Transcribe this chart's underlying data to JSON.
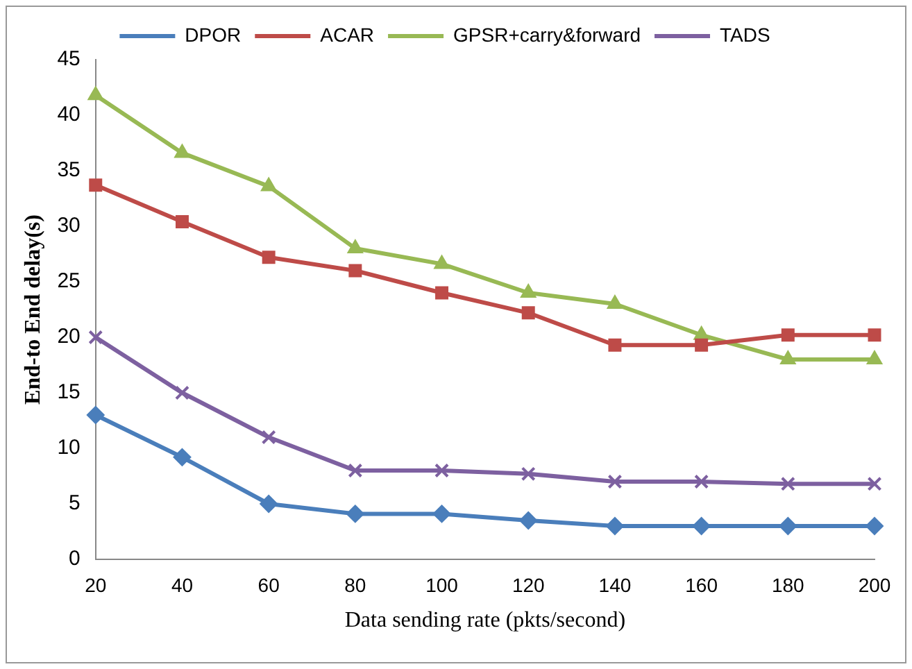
{
  "chart_data": {
    "type": "line",
    "xlabel": "Data sending rate (pkts/second)",
    "ylabel": "End-to End delay(s)",
    "categories": [
      "20",
      "40",
      "60",
      "80",
      "100",
      "120",
      "140",
      "160",
      "180",
      "200"
    ],
    "series": [
      {
        "name": "DPOR",
        "color": "#4a7ebb",
        "marker": "diamond",
        "values": [
          13,
          9.2,
          5,
          4.1,
          4.1,
          3.5,
          3,
          3,
          3,
          3
        ]
      },
      {
        "name": "ACAR",
        "color": "#be4b48",
        "marker": "square",
        "values": [
          33.7,
          30.4,
          27.2,
          26,
          24,
          22.2,
          19.3,
          19.3,
          20.2,
          20.2
        ]
      },
      {
        "name": "GPSR+carry&forward",
        "color": "#98b954",
        "marker": "triangle",
        "values": [
          41.8,
          36.6,
          33.6,
          28,
          26.6,
          24,
          23,
          20.2,
          18,
          18
        ]
      },
      {
        "name": "TADS",
        "color": "#7d60a0",
        "marker": "cross",
        "values": [
          20,
          15,
          11,
          8,
          8,
          7.7,
          7,
          7,
          6.8,
          6.8
        ]
      }
    ],
    "ylim": [
      0,
      45
    ],
    "yticks": [
      0,
      5,
      10,
      15,
      20,
      25,
      30,
      35,
      40,
      45
    ],
    "grid": false,
    "legend": "top",
    "line_style": "solid"
  }
}
